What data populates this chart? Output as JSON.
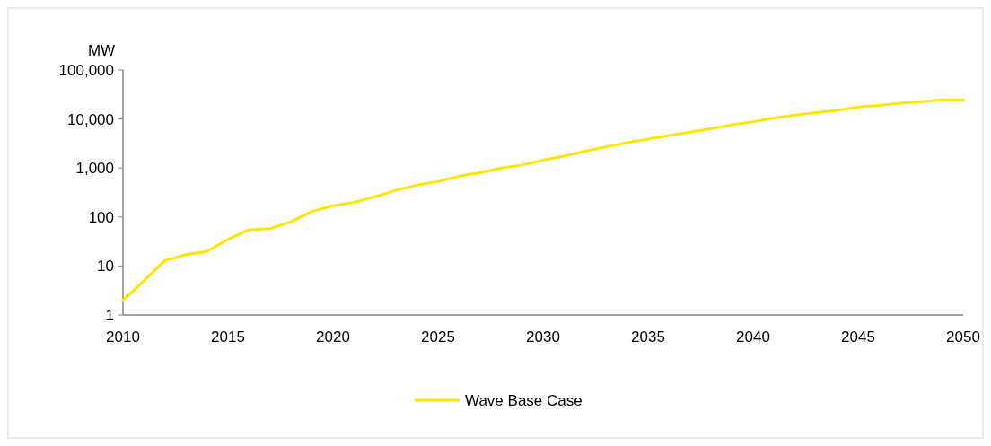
{
  "chart_data": {
    "type": "line",
    "ylabel": "MW",
    "log": true,
    "x": [
      2010,
      2011,
      2012,
      2013,
      2014,
      2015,
      2016,
      2017,
      2018,
      2019,
      2020,
      2021,
      2022,
      2023,
      2024,
      2025,
      2026,
      2027,
      2028,
      2029,
      2030,
      2031,
      2032,
      2033,
      2034,
      2035,
      2036,
      2037,
      2038,
      2039,
      2040,
      2041,
      2042,
      2043,
      2044,
      2045,
      2046,
      2047,
      2048,
      2049,
      2050
    ],
    "series": [
      {
        "name": "Wave Base Case",
        "color": "#ffe600",
        "values": [
          2,
          5,
          13,
          17,
          20,
          35,
          55,
          58,
          80,
          130,
          170,
          200,
          260,
          350,
          450,
          530,
          680,
          800,
          1000,
          1150,
          1450,
          1750,
          2200,
          2700,
          3300,
          3900,
          4600,
          5400,
          6400,
          7600,
          8800,
          10500,
          12000,
          13500,
          15000,
          17500,
          19000,
          21000,
          22500,
          24500,
          24500
        ]
      }
    ],
    "xlim": [
      2010,
      2050
    ],
    "xticks": [
      2010,
      2015,
      2020,
      2025,
      2030,
      2035,
      2040,
      2045,
      2050
    ],
    "ylim": [
      1,
      100000
    ],
    "yticks": [
      1,
      10,
      {
        "value": 100,
        "label": "100"
      },
      {
        "value": 1000,
        "label": "1,000"
      },
      {
        "value": 10000,
        "label": "10,000"
      },
      {
        "value": 100000,
        "label": "100,000"
      }
    ],
    "grid": false,
    "legend": "bottom"
  }
}
